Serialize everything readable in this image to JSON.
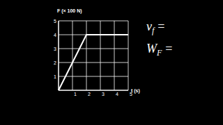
{
  "chart_data": {
    "type": "line",
    "y_label": "F (× 100 N)",
    "x_label": "t (s)",
    "x": [
      0,
      2,
      5
    ],
    "values": [
      0,
      4,
      4
    ],
    "color": "#ffffff",
    "xlim": [
      0,
      5
    ],
    "ylim": [
      0,
      5
    ],
    "xticks": [
      1,
      2,
      3,
      4,
      5
    ],
    "yticks": [
      1,
      2,
      3,
      4,
      5
    ],
    "grid": true,
    "annotations": [
      {
        "text": "v",
        "subscript": "f",
        "after": "="
      },
      {
        "text": "W",
        "subscript": "F",
        "after": "="
      }
    ]
  }
}
